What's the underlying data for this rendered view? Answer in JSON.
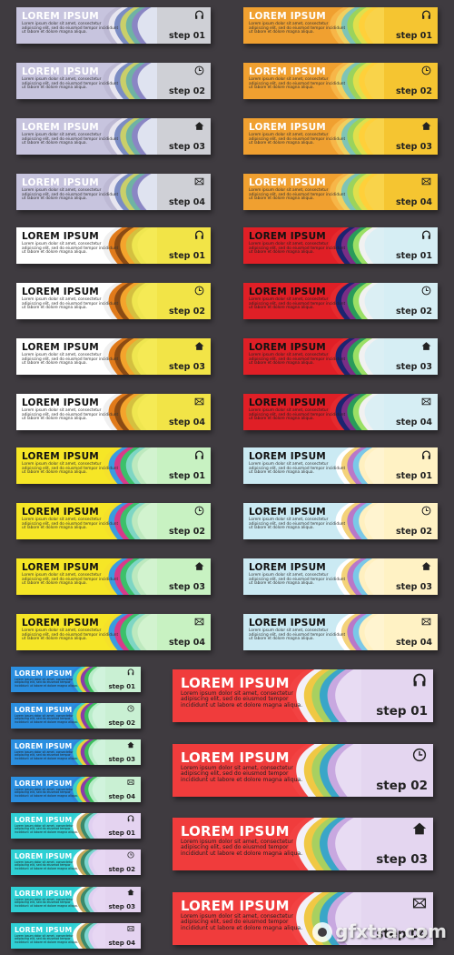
{
  "banner_text": {
    "title": "LOREM IPSUM",
    "body": "Lorem ipsum dolor sit amet, consectetur adipiscing elit, sed do eiusmod tempor incididunt ut labore et dolore magna aliqua."
  },
  "steps": [
    "step 01",
    "step 02",
    "step 03",
    "step 04"
  ],
  "step_icons": [
    "headphones-icon",
    "clock-icon",
    "home-icon",
    "envelope-icon"
  ],
  "themes": [
    {
      "name": "grey-violet",
      "left": "#c7c4de",
      "right": "#cfd0d6",
      "waves": [
        "#bdb9d4",
        "#e8e6f0",
        "#7b8cc4",
        "#c9cf6a",
        "#6fb3a3",
        "#8a86c4",
        "#dfe3f0"
      ],
      "title_color": "#ffffff",
      "text_color": "#333333"
    },
    {
      "name": "orange",
      "left": "#f0a030",
      "right": "#f5c531",
      "waves": [
        "#f7b648",
        "#f0d060",
        "#7ec4b6",
        "#9bd35c",
        "#e0e04c",
        "#ffd03a",
        "#f9d34a"
      ],
      "title_color": "#ffffff",
      "text_color": "#333333"
    },
    {
      "name": "white-yellow",
      "left": "#ffffff",
      "right": "#f2e447",
      "waves": [
        "#f0f0f0",
        "#e07a1a",
        "#8b4b14",
        "#f4a42c",
        "#d4c040",
        "#efe650",
        "#f5ea55"
      ],
      "title_color": "#111111",
      "text_color": "#333333"
    },
    {
      "name": "red-lightblue",
      "left": "#e01f26",
      "right": "#d6eef4",
      "waves": [
        "#e52a2e",
        "#1c2470",
        "#7a2d86",
        "#2a9c5a",
        "#9be065",
        "#f1f1f1",
        "#dbeff4"
      ],
      "title_color": "#111111",
      "text_color": "#222222"
    },
    {
      "name": "yellow-mint",
      "left": "#f6e626",
      "right": "#c8f2c2",
      "waves": [
        "#f5e12a",
        "#3a9be0",
        "#d83a8a",
        "#3cc06a",
        "#7ed6c4",
        "#bde9be",
        "#d2f3cf"
      ],
      "title_color": "#111111",
      "text_color": "#333333"
    },
    {
      "name": "lightblue-cream",
      "left": "#cbeaf3",
      "right": "#fff2c4",
      "waves": [
        "#cbeaf3",
        "#ffffff",
        "#f4d27a",
        "#b978c8",
        "#7ac8e8",
        "#fff0c0",
        "#fff4d0"
      ],
      "title_color": "#111111",
      "text_color": "#333333"
    },
    {
      "name": "blue-mint",
      "left": "#2b8fe0",
      "right": "#c9f0d3",
      "waves": [
        "#2f85da",
        "#3ad2c4",
        "#e8d33a",
        "#8a3ca8",
        "#3bbe5c",
        "#b8ecc8",
        "#d0f3dc"
      ],
      "title_color": "#ffffff",
      "text_color": "#222222"
    },
    {
      "name": "teal-lavender",
      "left": "#2fd0d4",
      "right": "#e4d3f0",
      "waves": [
        "#37d2d5",
        "#ffffff",
        "#c4a85a",
        "#3a8a6c",
        "#7ad6d0",
        "#e0cff0",
        "#e7d7f3"
      ],
      "title_color": "#ffffff",
      "text_color": "#222222"
    },
    {
      "name": "red-lavender",
      "left": "#f03c3c",
      "right": "#e4d6f0",
      "waves": [
        "#f24242",
        "#f3f0f8",
        "#f0c844",
        "#a8d060",
        "#3aa6c8",
        "#c8a8e0",
        "#e8dcf3"
      ],
      "title_color": "#ffffff",
      "text_color": "#222222"
    }
  ],
  "watermark": {
    "text": "gfxtra.com"
  }
}
